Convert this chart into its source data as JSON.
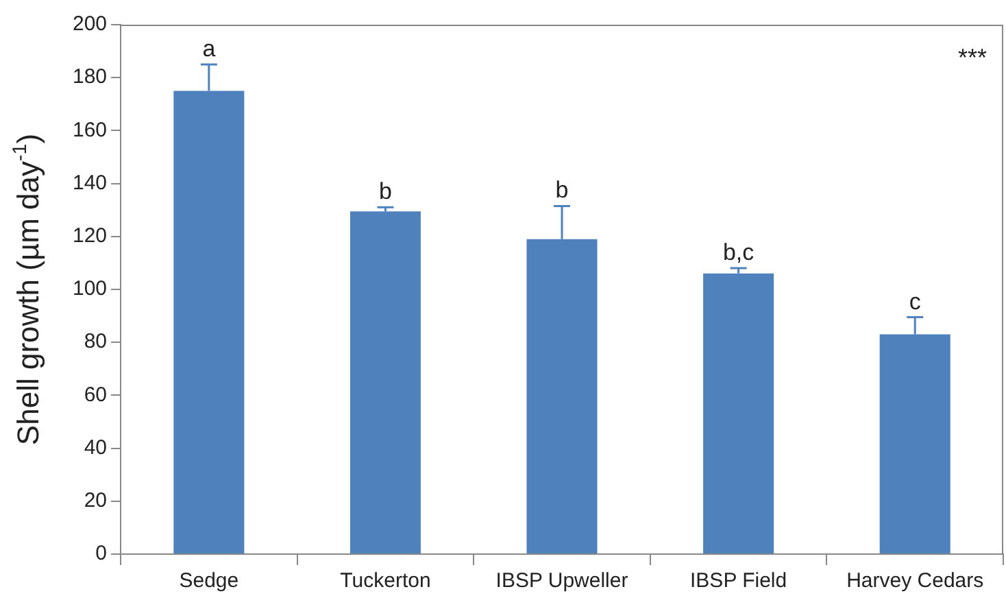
{
  "chart_data": {
    "type": "bar",
    "ylabel": "Shell growth (µm day$^{-1}$)",
    "categories": [
      "Sedge",
      "Tuckerton",
      "IBSP Upweller",
      "IBSP Field",
      "Harvey Cedars"
    ],
    "values": [
      175,
      129.5,
      119,
      106,
      83
    ],
    "errors": [
      [
        175,
        185
      ],
      [
        129.5,
        131
      ],
      [
        119,
        131.5
      ],
      [
        106,
        108
      ],
      [
        83,
        89.5
      ]
    ],
    "color": "#4f81bd",
    "ylim": [
      0,
      200
    ],
    "yticks": [
      0,
      20,
      40,
      60,
      80,
      100,
      120,
      140,
      160,
      180,
      200
    ],
    "grid": false,
    "legend": false,
    "annotations": [
      {
        "text": "a",
        "x": "Sedge",
        "y": 185
      },
      {
        "text": "b",
        "x": "Tuckerton",
        "y": 131
      },
      {
        "text": "b",
        "x": "IBSP Upweller",
        "y": 131.5
      },
      {
        "text": "b,c",
        "x": "IBSP Field",
        "y": 108
      },
      {
        "text": "c",
        "x": "Harvey Cedars",
        "y": 89.5
      },
      "***"
    ]
  }
}
